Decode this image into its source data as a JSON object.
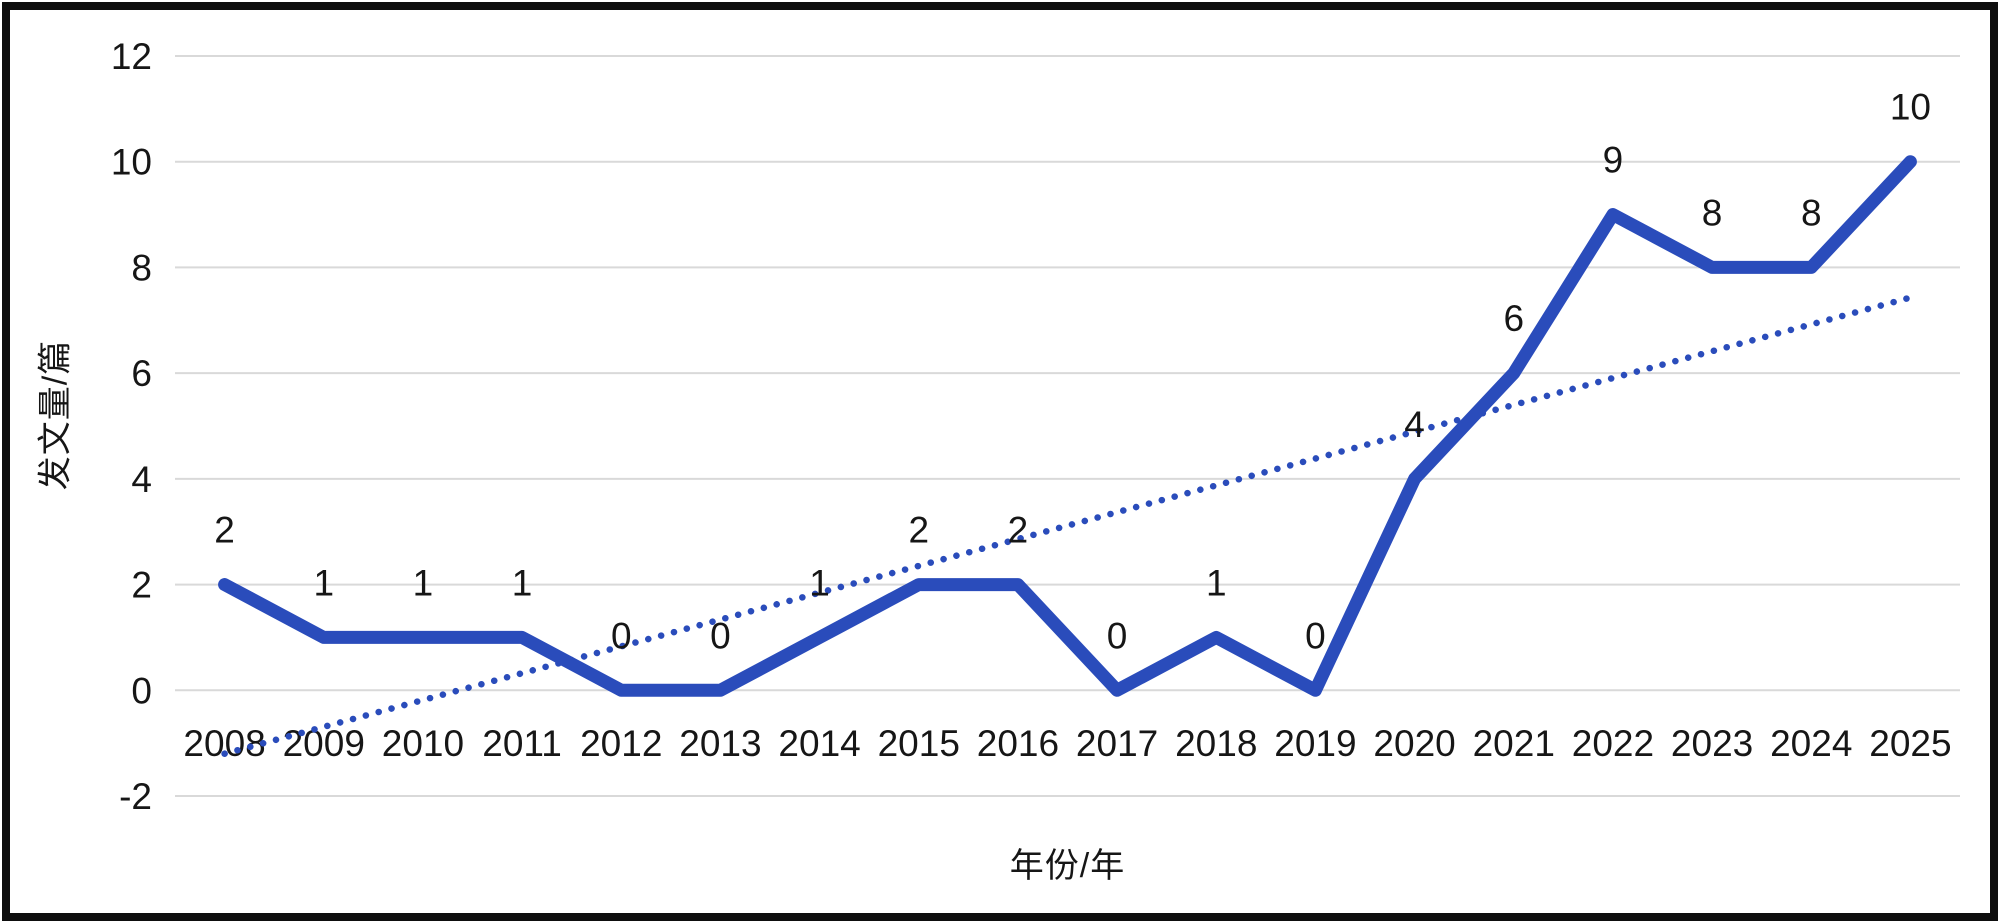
{
  "chart_data": {
    "type": "line",
    "title": "",
    "xlabel": "年份/年",
    "ylabel": "发文量/篇",
    "categories": [
      "2008",
      "2009",
      "2010",
      "2011",
      "2012",
      "2013",
      "2014",
      "2015",
      "2016",
      "2017",
      "2018",
      "2019",
      "2020",
      "2021",
      "2022",
      "2023",
      "2024",
      "2025"
    ],
    "series": [
      {
        "name": "发文量",
        "values": [
          2,
          1,
          1,
          1,
          0,
          0,
          1,
          2,
          2,
          0,
          1,
          0,
          4,
          6,
          9,
          8,
          8,
          10
        ]
      }
    ],
    "data_labels": [
      2,
      1,
      1,
      1,
      0,
      0,
      1,
      2,
      2,
      0,
      1,
      0,
      4,
      6,
      9,
      8,
      8,
      10
    ],
    "trendline": {
      "type": "linear",
      "style": "dotted",
      "start_value": -1.2,
      "end_value": 7.43
    },
    "ylim": [
      -2,
      12
    ],
    "yticks": [
      -2,
      0,
      2,
      4,
      6,
      8,
      10,
      12
    ],
    "grid": true,
    "legend": "none",
    "colors": {
      "line": "#2A4CBB",
      "trendline": "#2A4CBB",
      "gridline": "#D9D9D9",
      "text": "#161616",
      "background": "#FFFFFF",
      "frame_border": "#0E0E0E"
    }
  }
}
